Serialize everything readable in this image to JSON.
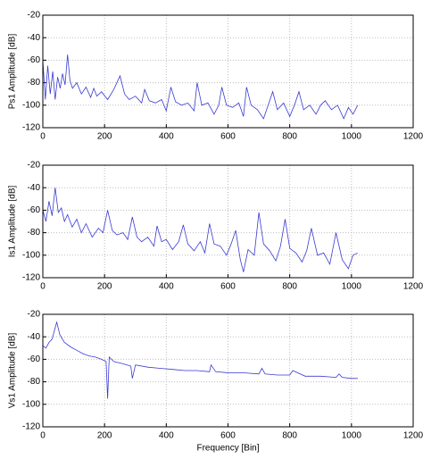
{
  "chart_data": [
    {
      "type": "line",
      "ylabel": "Ps1 Amplitude [dB]",
      "color": "#3a3ad0",
      "grid": true,
      "xlim": [
        0,
        1200
      ],
      "xticks": [
        0,
        200,
        400,
        600,
        800,
        1000,
        1200
      ],
      "ylim": [
        -120,
        -20
      ],
      "yticks": [
        -20,
        -40,
        -60,
        -80,
        -100,
        -120
      ],
      "x": [
        0,
        8,
        16,
        24,
        32,
        40,
        48,
        56,
        64,
        72,
        80,
        88,
        96,
        110,
        125,
        140,
        155,
        165,
        175,
        190,
        210,
        230,
        250,
        265,
        280,
        300,
        320,
        330,
        345,
        365,
        385,
        400,
        415,
        430,
        450,
        470,
        490,
        500,
        515,
        535,
        555,
        570,
        580,
        595,
        615,
        635,
        650,
        660,
        675,
        695,
        715,
        730,
        745,
        760,
        780,
        800,
        815,
        830,
        845,
        865,
        885,
        900,
        915,
        935,
        955,
        975,
        990,
        1005,
        1020
      ],
      "values": [
        -60,
        -95,
        -65,
        -90,
        -70,
        -95,
        -75,
        -85,
        -72,
        -82,
        -55,
        -78,
        -85,
        -80,
        -90,
        -84,
        -93,
        -85,
        -92,
        -88,
        -95,
        -86,
        -74,
        -90,
        -95,
        -92,
        -98,
        -86,
        -96,
        -98,
        -95,
        -105,
        -84,
        -97,
        -100,
        -98,
        -105,
        -80,
        -100,
        -98,
        -108,
        -100,
        -84,
        -100,
        -102,
        -98,
        -110,
        -84,
        -100,
        -104,
        -112,
        -100,
        -88,
        -104,
        -98,
        -110,
        -100,
        -88,
        -104,
        -100,
        -108,
        -100,
        -96,
        -104,
        -100,
        -112,
        -102,
        -108,
        -100
      ]
    },
    {
      "type": "line",
      "ylabel": "Is1 Amplitude [dB]",
      "color": "#3a3ad0",
      "grid": true,
      "xlim": [
        0,
        1200
      ],
      "xticks": [
        0,
        200,
        400,
        600,
        800,
        1000,
        1200
      ],
      "ylim": [
        -120,
        -20
      ],
      "yticks": [
        -20,
        -40,
        -60,
        -80,
        -100,
        -120
      ],
      "x": [
        0,
        10,
        20,
        30,
        40,
        50,
        60,
        70,
        80,
        95,
        110,
        125,
        140,
        160,
        180,
        195,
        210,
        225,
        240,
        260,
        275,
        290,
        305,
        320,
        340,
        360,
        370,
        385,
        400,
        420,
        440,
        455,
        470,
        490,
        510,
        525,
        540,
        555,
        575,
        595,
        610,
        625,
        640,
        650,
        665,
        685,
        700,
        715,
        735,
        755,
        770,
        785,
        800,
        820,
        840,
        855,
        870,
        890,
        910,
        930,
        950,
        970,
        990,
        1005,
        1020
      ],
      "values": [
        -60,
        -70,
        -52,
        -65,
        -40,
        -62,
        -58,
        -70,
        -64,
        -75,
        -68,
        -80,
        -72,
        -84,
        -76,
        -80,
        -60,
        -78,
        -82,
        -80,
        -86,
        -66,
        -84,
        -88,
        -84,
        -92,
        -74,
        -88,
        -86,
        -95,
        -88,
        -73,
        -90,
        -96,
        -88,
        -98,
        -72,
        -90,
        -92,
        -100,
        -90,
        -78,
        -104,
        -115,
        -95,
        -100,
        -62,
        -90,
        -96,
        -105,
        -92,
        -68,
        -94,
        -98,
        -106,
        -96,
        -76,
        -100,
        -98,
        -108,
        -80,
        -104,
        -112,
        -100,
        -98
      ]
    },
    {
      "type": "line",
      "ylabel": "Vs1 Amplitude [dB]",
      "xlabel": "Frequency [Bin]",
      "color": "#3a3ad0",
      "grid": true,
      "xlim": [
        0,
        1200
      ],
      "xticks": [
        0,
        200,
        400,
        600,
        800,
        1000,
        1200
      ],
      "ylim": [
        -120,
        -20
      ],
      "yticks": [
        -20,
        -40,
        -60,
        -80,
        -100,
        -120
      ],
      "x": [
        0,
        10,
        20,
        30,
        40,
        45,
        55,
        70,
        90,
        110,
        130,
        150,
        170,
        190,
        205,
        210,
        215,
        230,
        260,
        285,
        290,
        300,
        340,
        380,
        420,
        460,
        500,
        540,
        545,
        560,
        600,
        650,
        700,
        710,
        720,
        760,
        800,
        810,
        850,
        900,
        950,
        960,
        970,
        1000,
        1020
      ],
      "values": [
        -48,
        -50,
        -45,
        -42,
        -32,
        -27,
        -38,
        -45,
        -49,
        -52,
        -55,
        -57,
        -58,
        -60,
        -62,
        -95,
        -58,
        -62,
        -64,
        -66,
        -77,
        -65,
        -67,
        -68,
        -69,
        -70,
        -70,
        -71,
        -65,
        -71,
        -72,
        -72,
        -73,
        -68,
        -73,
        -74,
        -74,
        -70,
        -75,
        -75,
        -76,
        -73,
        -76,
        -77,
        -77
      ]
    }
  ]
}
